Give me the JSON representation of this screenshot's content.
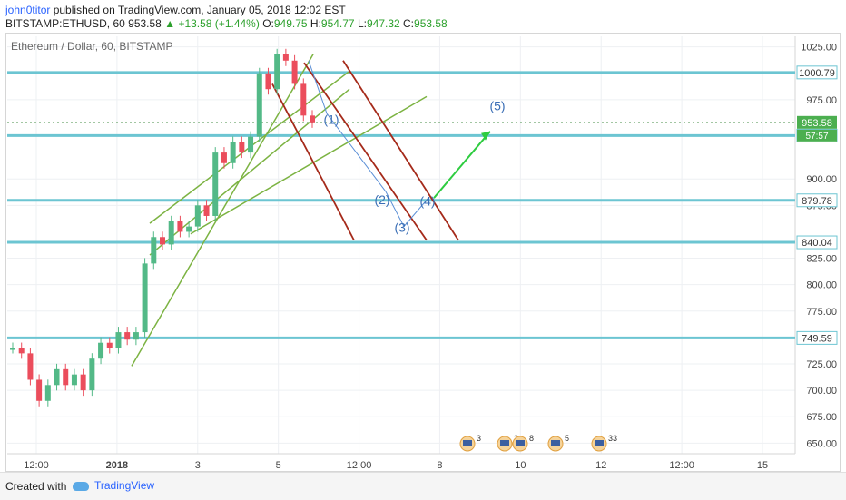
{
  "header": {
    "user": "john0titor",
    "published_text": " published on TradingView.com, January 05, 2018 12:02 EST",
    "symbol_interval": "BITSTAMP:ETHUSD, 60",
    "last": "953.58",
    "change": "+13.58 (+1.44%)",
    "o_label": "O:",
    "o": "949.75",
    "h_label": "H:",
    "h": "954.77",
    "l_label": "L:",
    "l": "947.32",
    "c_label": "C:",
    "c": "953.58"
  },
  "chart_data": {
    "type": "line",
    "title": "Ethereum / Dollar, 60, BITSTAMP",
    "xlabel": "",
    "ylabel": "",
    "ylim": [
      640,
      1035
    ],
    "price_ticks": [
      "1025.00",
      "975.00",
      "900.00",
      "875.00",
      "825.00",
      "800.00",
      "775.00",
      "725.00",
      "700.00",
      "675.00",
      "650.00"
    ],
    "time_ticks": [
      "12:00",
      "2018",
      "3",
      "5",
      "12:00",
      "8",
      "10",
      "12",
      "12:00",
      "15"
    ],
    "levels": [
      {
        "label": "1000.79",
        "value": 1000.79
      },
      {
        "label": "941.05",
        "value": 941.05
      },
      {
        "label": "879.78",
        "value": 879.78
      },
      {
        "label": "840.04",
        "value": 840.04
      },
      {
        "label": "749.59",
        "value": 749.59
      }
    ],
    "current_price_label": "953.58",
    "countdown_label": "57:57",
    "wave_labels": [
      "(1)",
      "(2)",
      "(3)",
      "(4)",
      "(5)"
    ],
    "price_series": [
      {
        "x": 0,
        "y": 740
      },
      {
        "x": 1,
        "y": 735
      },
      {
        "x": 2,
        "y": 710
      },
      {
        "x": 3,
        "y": 690
      },
      {
        "x": 4,
        "y": 705
      },
      {
        "x": 5,
        "y": 720
      },
      {
        "x": 6,
        "y": 705
      },
      {
        "x": 7,
        "y": 715
      },
      {
        "x": 8,
        "y": 700
      },
      {
        "x": 9,
        "y": 730
      },
      {
        "x": 10,
        "y": 745
      },
      {
        "x": 11,
        "y": 740
      },
      {
        "x": 12,
        "y": 755
      },
      {
        "x": 13,
        "y": 748
      },
      {
        "x": 14,
        "y": 755
      },
      {
        "x": 15,
        "y": 820
      },
      {
        "x": 16,
        "y": 845
      },
      {
        "x": 17,
        "y": 838
      },
      {
        "x": 18,
        "y": 860
      },
      {
        "x": 19,
        "y": 850
      },
      {
        "x": 20,
        "y": 855
      },
      {
        "x": 21,
        "y": 875
      },
      {
        "x": 22,
        "y": 865
      },
      {
        "x": 23,
        "y": 925
      },
      {
        "x": 24,
        "y": 915
      },
      {
        "x": 25,
        "y": 935
      },
      {
        "x": 26,
        "y": 925
      },
      {
        "x": 27,
        "y": 940
      },
      {
        "x": 28,
        "y": 1000
      },
      {
        "x": 29,
        "y": 985
      },
      {
        "x": 30,
        "y": 1018
      },
      {
        "x": 31,
        "y": 1012
      },
      {
        "x": 32,
        "y": 990
      },
      {
        "x": 33,
        "y": 960
      },
      {
        "x": 34,
        "y": 953.58
      }
    ],
    "markers": [
      {
        "label": "3"
      },
      {
        "label": "2"
      },
      {
        "label": "8"
      },
      {
        "label": "5"
      },
      {
        "label": "33"
      }
    ]
  },
  "footer": {
    "created_with": "Created with",
    "brand": "TradingView"
  }
}
